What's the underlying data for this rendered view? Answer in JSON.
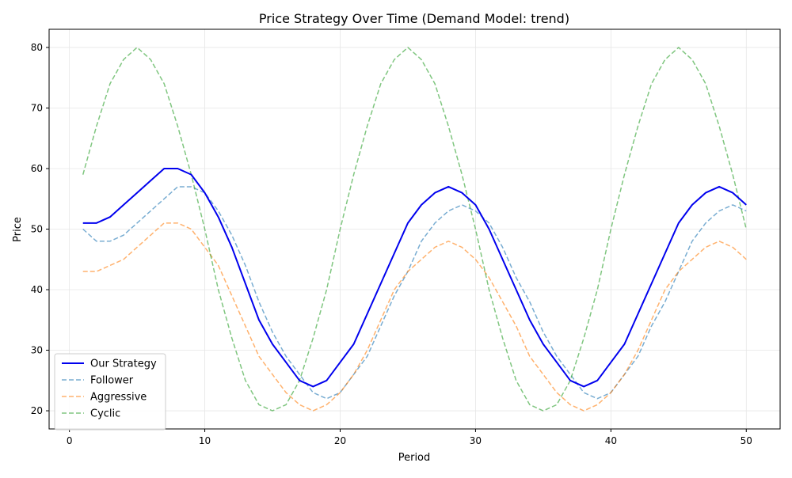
{
  "chart_data": {
    "type": "line",
    "title": "Price Strategy Over Time (Demand Model: trend)",
    "xlabel": "Period",
    "ylabel": "Price",
    "xlim": [
      -1.5,
      52.5
    ],
    "ylim": [
      17,
      83
    ],
    "xticks": [
      0,
      10,
      20,
      30,
      40,
      50
    ],
    "yticks": [
      20,
      30,
      40,
      50,
      60,
      70,
      80
    ],
    "grid": true,
    "legend_position": "lower-left",
    "x": [
      1,
      2,
      3,
      4,
      5,
      6,
      7,
      8,
      9,
      10,
      11,
      12,
      13,
      14,
      15,
      16,
      17,
      18,
      19,
      20,
      21,
      22,
      23,
      24,
      25,
      26,
      27,
      28,
      29,
      30,
      31,
      32,
      33,
      34,
      35,
      36,
      37,
      38,
      39,
      40,
      41,
      42,
      43,
      44,
      45,
      46,
      47,
      48,
      49,
      50
    ],
    "series": [
      {
        "name": "Our Strategy",
        "color": "#0000ee",
        "style": "solid",
        "values": [
          51,
          51,
          52,
          54,
          56,
          58,
          60,
          60,
          59,
          56,
          52,
          47,
          41,
          35,
          31,
          28,
          25,
          24,
          25,
          28,
          31,
          36,
          41,
          46,
          51,
          54,
          56,
          57,
          56,
          54,
          50,
          45,
          40,
          35,
          31,
          28,
          25,
          24,
          25,
          28,
          31,
          36,
          41,
          46,
          51,
          54,
          56,
          57,
          56,
          54
        ]
      },
      {
        "name": "Follower",
        "color": "#1f77b4",
        "style": "dashed",
        "values": [
          50,
          48,
          48,
          49,
          51,
          53,
          55,
          57,
          57,
          56,
          53,
          49,
          44,
          38,
          33,
          29,
          26,
          23,
          22,
          23,
          26,
          29,
          34,
          39,
          43,
          48,
          51,
          53,
          54,
          53,
          51,
          47,
          42,
          38,
          33,
          29,
          26,
          23,
          22,
          23,
          26,
          29,
          34,
          38,
          43,
          48,
          51,
          53,
          54,
          53
        ]
      },
      {
        "name": "Aggressive",
        "color": "#ff7f0e",
        "style": "dashed",
        "values": [
          43,
          43,
          44,
          45,
          47,
          49,
          51,
          51,
          50,
          47,
          44,
          39,
          34,
          29,
          26,
          23,
          21,
          20,
          21,
          23,
          26,
          30,
          35,
          40,
          43,
          45,
          47,
          48,
          47,
          45,
          42,
          38,
          34,
          29,
          26,
          23,
          21,
          20,
          21,
          23,
          26,
          30,
          35,
          40,
          43,
          45,
          47,
          48,
          47,
          45
        ]
      },
      {
        "name": "Cyclic",
        "color": "#2ca02c",
        "style": "dashed",
        "values": [
          59,
          67,
          74,
          78,
          80,
          78,
          74,
          67,
          59,
          50,
          40,
          32,
          25,
          21,
          20,
          21,
          25,
          32,
          40,
          50,
          59,
          67,
          74,
          78,
          80,
          78,
          74,
          67,
          59,
          50,
          40,
          32,
          25,
          21,
          20,
          21,
          25,
          32,
          40,
          50,
          59,
          67,
          74,
          78,
          80,
          78,
          74,
          67,
          59,
          50
        ]
      }
    ]
  }
}
